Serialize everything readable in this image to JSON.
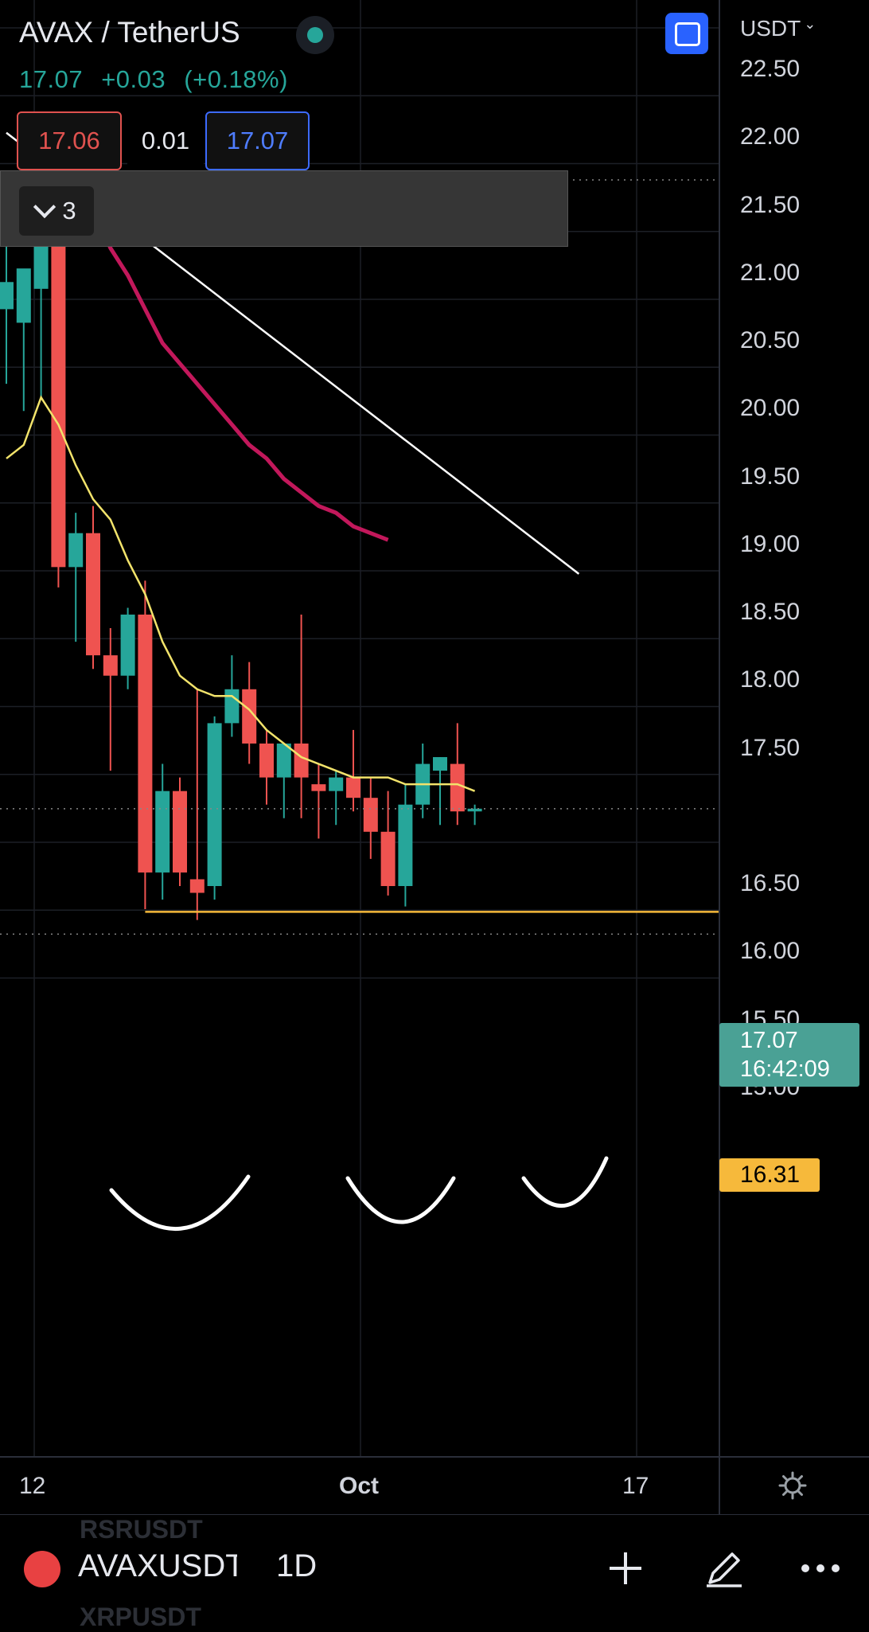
{
  "header": {
    "title": "AVAX / TetherUS",
    "last_price": "17.07",
    "change_abs": "+0.03",
    "change_pct": "(+0.18%)",
    "bid": "17.06",
    "spread": "0.01",
    "ask": "17.07",
    "indicators_count": "3",
    "currency_selector": "USDT"
  },
  "price_axis": {
    "ticks": [
      "22.50",
      "22.00",
      "21.50",
      "21.00",
      "20.50",
      "20.00",
      "19.50",
      "19.00",
      "18.50",
      "18.00",
      "17.50",
      "16.50",
      "16.00",
      "15.50",
      "15.00"
    ],
    "last_price_label": "17.07",
    "countdown": "16:42:09",
    "support_label": "16.31"
  },
  "time_axis": {
    "ticks": [
      "12",
      "Oct",
      "17"
    ]
  },
  "bottom_bar": {
    "symbol": "AVAXUSDT",
    "timeframe": "1D",
    "ghost_above": "RSRUSDT",
    "ghost_below": "XRPUSDT"
  },
  "colors": {
    "up": "#26a69a",
    "down": "#ef5350",
    "ma_fast": "#f2e36b",
    "ma_slow": "#c2185b",
    "trendline": "#ffffff",
    "support": "#f6b93b",
    "accent": "#2962ff"
  },
  "chart_data": {
    "type": "candlestick",
    "symbol": "AVAXUSDT",
    "interval": "1D",
    "ylim": [
      14.6,
      22.8
    ],
    "candles": [
      {
        "o": 20.75,
        "h": 21.3,
        "l": 20.2,
        "c": 20.95
      },
      {
        "o": 20.65,
        "h": 21.0,
        "l": 20.0,
        "c": 21.05
      },
      {
        "o": 20.9,
        "h": 21.9,
        "l": 20.1,
        "c": 21.6
      },
      {
        "o": 21.55,
        "h": 21.7,
        "l": 18.7,
        "c": 18.85
      },
      {
        "o": 18.85,
        "h": 19.25,
        "l": 18.3,
        "c": 19.1
      },
      {
        "o": 19.1,
        "h": 19.3,
        "l": 18.1,
        "c": 18.2
      },
      {
        "o": 18.2,
        "h": 18.4,
        "l": 17.35,
        "c": 18.05
      },
      {
        "o": 18.05,
        "h": 18.55,
        "l": 17.95,
        "c": 18.5
      },
      {
        "o": 18.5,
        "h": 18.75,
        "l": 16.33,
        "c": 16.6
      },
      {
        "o": 16.6,
        "h": 17.4,
        "l": 16.4,
        "c": 17.2
      },
      {
        "o": 17.2,
        "h": 17.3,
        "l": 16.5,
        "c": 16.6
      },
      {
        "o": 16.55,
        "h": 17.95,
        "l": 16.25,
        "c": 16.45
      },
      {
        "o": 16.5,
        "h": 17.75,
        "l": 16.4,
        "c": 17.7
      },
      {
        "o": 17.7,
        "h": 18.2,
        "l": 17.6,
        "c": 17.95
      },
      {
        "o": 17.95,
        "h": 18.15,
        "l": 17.4,
        "c": 17.55
      },
      {
        "o": 17.55,
        "h": 17.65,
        "l": 17.1,
        "c": 17.3
      },
      {
        "o": 17.3,
        "h": 17.55,
        "l": 17.0,
        "c": 17.55
      },
      {
        "o": 17.55,
        "h": 18.5,
        "l": 17.0,
        "c": 17.3
      },
      {
        "o": 17.25,
        "h": 17.4,
        "l": 16.85,
        "c": 17.2
      },
      {
        "o": 17.2,
        "h": 17.35,
        "l": 16.95,
        "c": 17.3
      },
      {
        "o": 17.3,
        "h": 17.65,
        "l": 17.05,
        "c": 17.15
      },
      {
        "o": 17.15,
        "h": 17.3,
        "l": 16.7,
        "c": 16.9
      },
      {
        "o": 16.9,
        "h": 17.2,
        "l": 16.43,
        "c": 16.5
      },
      {
        "o": 16.5,
        "h": 17.25,
        "l": 16.35,
        "c": 17.1
      },
      {
        "o": 17.1,
        "h": 17.55,
        "l": 17.0,
        "c": 17.4
      },
      {
        "o": 17.35,
        "h": 17.45,
        "l": 16.95,
        "c": 17.45
      },
      {
        "o": 17.4,
        "h": 17.7,
        "l": 16.95,
        "c": 17.05
      },
      {
        "o": 17.05,
        "h": 17.1,
        "l": 16.95,
        "c": 17.07
      }
    ],
    "ma_fast": [
      19.65,
      19.75,
      20.1,
      19.9,
      19.6,
      19.35,
      19.2,
      18.9,
      18.65,
      18.3,
      18.05,
      17.95,
      17.9,
      17.9,
      17.8,
      17.65,
      17.55,
      17.45,
      17.4,
      17.35,
      17.3,
      17.3,
      17.3,
      17.25,
      17.25,
      17.25,
      17.25,
      17.2
    ],
    "ma_slow": [
      null,
      null,
      22.1,
      21.9,
      21.7,
      21.5,
      21.2,
      21.0,
      20.75,
      20.5,
      20.35,
      20.2,
      20.05,
      19.9,
      19.75,
      19.65,
      19.5,
      19.4,
      19.3,
      19.25,
      19.15,
      19.1,
      19.05
    ],
    "trendline": {
      "from": {
        "index": 0,
        "price": 22.05
      },
      "to": {
        "index": 33,
        "price": 18.8
      }
    },
    "support_level": 16.31,
    "last_price": 17.07,
    "x_labels": [
      "12",
      "Oct",
      "17"
    ],
    "annotations": [
      "three hand-drawn arcs below the 16.31 support line"
    ]
  }
}
